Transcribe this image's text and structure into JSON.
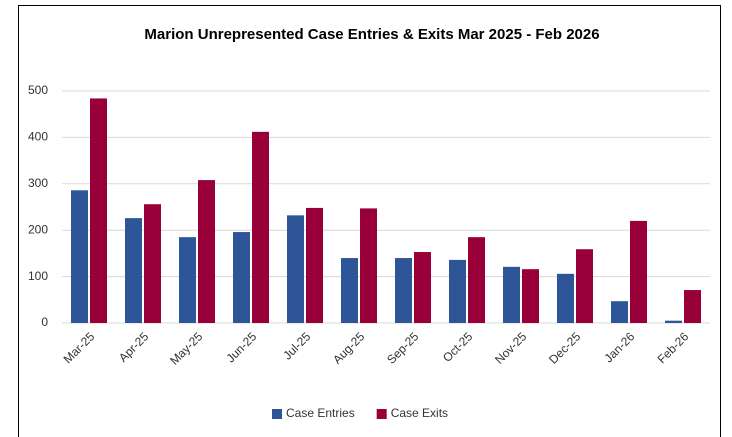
{
  "chart_data": {
    "type": "bar",
    "title": "Marion Unrepresented Case Entries & Exits Mar 2025 - Feb 2026",
    "categories": [
      "Mar-25",
      "Apr-25",
      "May-25",
      "Jun-25",
      "Jul-25",
      "Aug-25",
      "Sep-25",
      "Oct-25",
      "Nov-25",
      "Dec-25",
      "Jan-26",
      "Feb-26"
    ],
    "series": [
      {
        "name": "Case Entries",
        "color": "#2e5597",
        "values": [
          286,
          226,
          185,
          196,
          232,
          140,
          140,
          136,
          121,
          106,
          47,
          5
        ]
      },
      {
        "name": "Case Exits",
        "color": "#99003a",
        "values": [
          484,
          256,
          308,
          412,
          248,
          247,
          153,
          185,
          116,
          159,
          220,
          71
        ]
      }
    ],
    "ylim": [
      0,
      500
    ],
    "yticks": [
      0,
      100,
      200,
      300,
      400,
      500
    ],
    "grid": true,
    "legend": "bottom"
  }
}
